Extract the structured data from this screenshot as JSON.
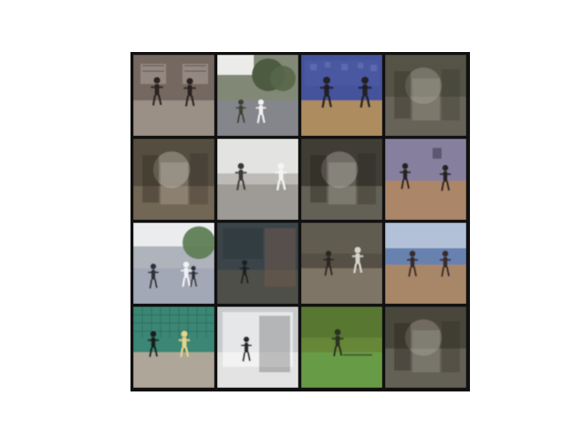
{
  "grid": {
    "rows": 4,
    "cols": 4,
    "frame_color": "#111111",
    "tiles": [
      {
        "scene": "gym-hall-two-fighters",
        "colors": {
          "bg": "#7d6f66",
          "floor": "#a59a8f",
          "accent": "#2a2320",
          "detail": "#d8d2cb"
        }
      },
      {
        "scene": "outdoor-trees-figures",
        "colors": {
          "bg": "#8a917c",
          "floor": "#8e8f95",
          "accent": "#3c3f33",
          "detail": "#f2f2f2"
        }
      },
      {
        "scene": "blue-wall-two-fighters",
        "colors": {
          "bg": "#4a59a7",
          "floor": "#b89568",
          "accent": "#222023",
          "detail": "#6e7dbd"
        }
      },
      {
        "scene": "dark-blurry-closeup",
        "colors": {
          "bg": "#5a584a",
          "floor": "#6f6b5e",
          "accent": "#2c2a22",
          "detail": "#b7b3a6"
        }
      },
      {
        "scene": "closeup-people-room",
        "colors": {
          "bg": "#5b5345",
          "floor": "#7a6d5b",
          "accent": "#2a241e",
          "detail": "#d6d1c6"
        }
      },
      {
        "scene": "bright-studio-two-fighters",
        "colors": {
          "bg": "#c9c7c3",
          "floor": "#a8a49f",
          "accent": "#3a3838",
          "detail": "#f4f4f2"
        }
      },
      {
        "scene": "closeup-dark-interior",
        "colors": {
          "bg": "#43413a",
          "floor": "#6a665a",
          "accent": "#1f1d19",
          "detail": "#c8c7bd"
        }
      },
      {
        "scene": "purple-wall-two-fighters",
        "colors": {
          "bg": "#8f89a8",
          "floor": "#b78f6f",
          "accent": "#252124",
          "detail": "#cfcbd8"
        }
      },
      {
        "scene": "outdoor-court-fighters",
        "colors": {
          "bg": "#b9bfc8",
          "floor": "#aeb3c2",
          "accent": "#2e3038",
          "detail": "#f1f2f5"
        }
      },
      {
        "scene": "dark-window-figure",
        "colors": {
          "bg": "#3e4a4f",
          "floor": "#55564e",
          "accent": "#1f2224",
          "detail": "#8a7766"
        }
      },
      {
        "scene": "courtyard-kick",
        "colors": {
          "bg": "#5b554a",
          "floor": "#877d6d",
          "accent": "#2b2620",
          "detail": "#d8d4cc"
        }
      },
      {
        "scene": "sky-dirt-two-fighters",
        "colors": {
          "bg": "#6f8bbb",
          "floor": "#b39070",
          "accent": "#3a2a26",
          "detail": "#cbd6e6"
        }
      },
      {
        "scene": "green-fence-court",
        "colors": {
          "bg": "#3f8f7d",
          "floor": "#b8b1a3",
          "accent": "#1e1f1c",
          "detail": "#e6d58b"
        }
      },
      {
        "scene": "white-room-blur",
        "colors": {
          "bg": "#d5d7da",
          "floor": "#f2f2f2",
          "accent": "#2a2a2a",
          "detail": "#8b8f93"
        }
      },
      {
        "scene": "green-field-figure",
        "colors": {
          "bg": "#6e8f3d",
          "floor": "#6fa54a",
          "accent": "#2a3324",
          "detail": "#d9ddd1"
        }
      },
      {
        "scene": "dark-blurry-closeup-2",
        "colors": {
          "bg": "#4f4b3f",
          "floor": "#6b675c",
          "accent": "#25221b",
          "detail": "#b5b2a6"
        }
      }
    ]
  }
}
